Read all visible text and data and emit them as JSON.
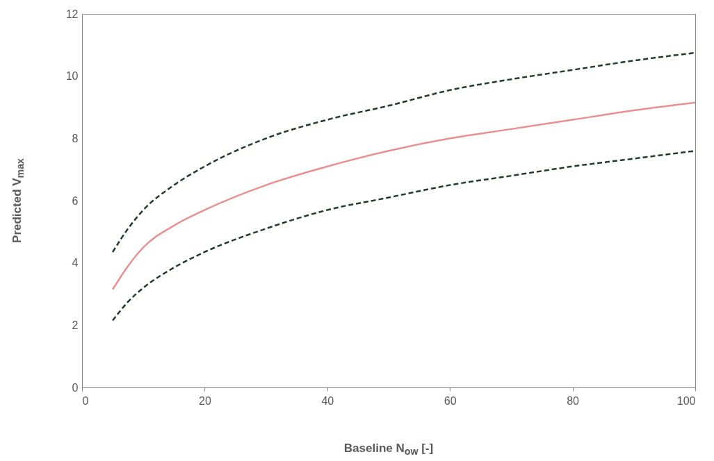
{
  "chart_data": {
    "type": "line",
    "xlabel": "Baseline N$_{ow}$ [-]",
    "ylabel": "Predicted V$_{max}$",
    "xlim": [
      0,
      100
    ],
    "xticks": [
      0,
      20,
      40,
      60,
      80,
      100
    ],
    "ylim": [
      0,
      12
    ],
    "yticks": [
      0,
      2,
      4,
      6,
      8,
      10,
      12
    ],
    "grid": false,
    "marker": "none",
    "series": [
      {
        "color": "#e8908f",
        "line_style": "solid",
        "x": [
          5,
          7.5,
          10,
          15,
          20,
          30,
          40,
          50,
          60,
          70,
          80,
          90,
          100
        ],
        "values": [
          3.15,
          3.9,
          4.5,
          5.2,
          5.7,
          6.5,
          7.1,
          7.6,
          8.0,
          8.3,
          8.6,
          8.9,
          9.15
        ]
      },
      {
        "color": "#1f3d2a",
        "line_style": "dashed",
        "x": [
          5,
          7.5,
          10,
          15,
          20,
          30,
          40,
          50,
          60,
          70,
          80,
          90,
          100
        ],
        "values": [
          4.35,
          5.1,
          5.7,
          6.5,
          7.1,
          8.0,
          8.6,
          9.05,
          9.55,
          9.9,
          10.2,
          10.5,
          10.75
        ]
      },
      {
        "color": "#1f3d2a",
        "line_style": "dashed",
        "x": [
          5,
          7.5,
          10,
          15,
          20,
          30,
          40,
          50,
          60,
          70,
          80,
          90,
          100
        ],
        "values": [
          2.15,
          2.75,
          3.2,
          3.85,
          4.35,
          5.1,
          5.7,
          6.1,
          6.5,
          6.8,
          7.1,
          7.35,
          7.6
        ]
      }
    ]
  }
}
